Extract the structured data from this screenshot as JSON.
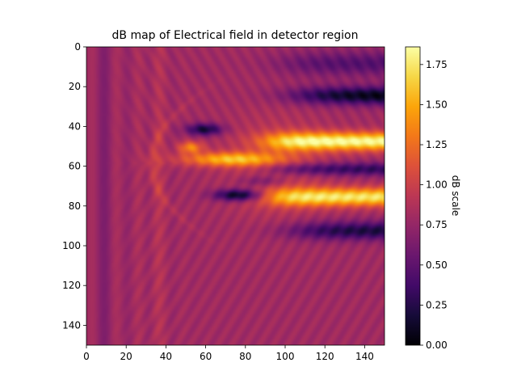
{
  "chart_data": {
    "type": "heatmap",
    "title": "dB map of Electrical field in detector region",
    "xlabel": "",
    "ylabel": "",
    "grid": false,
    "x_range": [
      0,
      150
    ],
    "y_range": [
      0,
      150
    ],
    "y_inverted": true,
    "x_ticks": [
      0,
      20,
      40,
      60,
      80,
      100,
      120,
      140
    ],
    "y_ticks": [
      0,
      20,
      40,
      60,
      80,
      100,
      120,
      140
    ],
    "colormap": "inferno",
    "colorbar": {
      "label": "dB scale",
      "range": [
        0,
        1.86
      ],
      "ticks": [
        "0.00",
        "0.25",
        "0.50",
        "0.75",
        "1.00",
        "1.25",
        "1.50",
        "1.75"
      ]
    },
    "field_description": {
      "background_level": 0.8,
      "features": [
        {
          "name": "bright beam upper",
          "y_center": 47,
          "x_start": 95,
          "x_end": 150,
          "value": 1.8
        },
        {
          "name": "bright beam lower",
          "y_center": 75,
          "x_start": 95,
          "x_end": 150,
          "value": 1.7
        },
        {
          "name": "bright core",
          "y_center": 56,
          "x_start": 48,
          "x_end": 95,
          "value": 1.7
        },
        {
          "name": "dark lobe upper",
          "y_center": 41,
          "x_start": 50,
          "x_end": 68,
          "value": 0.2
        },
        {
          "name": "dark lobe lower",
          "y_center": 74,
          "x_start": 62,
          "x_end": 90,
          "value": 0.1
        },
        {
          "name": "dark streak top",
          "y_center": 24,
          "x_start": 110,
          "x_end": 150,
          "value": 0.05
        },
        {
          "name": "dark streak middle",
          "y_center": 61,
          "x_start": 110,
          "x_end": 150,
          "value": 0.3
        },
        {
          "name": "dark streak bottom",
          "y_center": 92,
          "x_start": 110,
          "x_end": 150,
          "value": 0.2
        }
      ]
    }
  }
}
